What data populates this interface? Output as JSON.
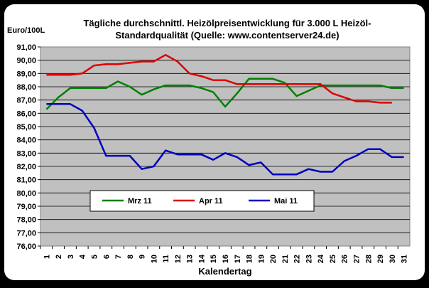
{
  "chart_data": {
    "type": "line",
    "title_line1": "Tägliche durchschnittl. Heizölpreisentwicklung für 3.000 L Heizöl-",
    "title_line2": "Standardqualität (Quelle: www.contentserver24.de)",
    "ylabel": "Euro/100L",
    "xlabel": "Kalendertag",
    "ylim": [
      76,
      91
    ],
    "y_ticks": [
      "76,00",
      "77,00",
      "78,00",
      "79,00",
      "80,00",
      "81,00",
      "82,00",
      "83,00",
      "84,00",
      "85,00",
      "86,00",
      "87,00",
      "88,00",
      "89,00",
      "90,00",
      "91,00"
    ],
    "x": [
      1,
      2,
      3,
      4,
      5,
      6,
      7,
      8,
      9,
      10,
      11,
      12,
      13,
      14,
      15,
      16,
      17,
      18,
      19,
      20,
      21,
      22,
      23,
      24,
      25,
      26,
      27,
      28,
      29,
      30,
      31
    ],
    "grid": true,
    "legend_position": "lower-center",
    "series": [
      {
        "name": "Mrz 11",
        "color": "#008000",
        "values": [
          86.3,
          87.2,
          87.9,
          87.9,
          87.9,
          87.9,
          88.4,
          88.0,
          87.4,
          87.8,
          88.1,
          88.1,
          88.1,
          87.9,
          87.6,
          86.5,
          87.5,
          88.6,
          88.6,
          88.6,
          88.3,
          87.3,
          87.7,
          88.1,
          88.1,
          88.1,
          88.1,
          88.1,
          88.1,
          87.9,
          87.9
        ]
      },
      {
        "name": "Apr 11",
        "color": "#e00000",
        "values": [
          88.9,
          88.9,
          88.9,
          89.0,
          89.6,
          89.7,
          89.7,
          89.8,
          89.9,
          89.9,
          90.4,
          89.9,
          89.0,
          88.8,
          88.5,
          88.5,
          88.2,
          88.2,
          88.2,
          88.2,
          88.2,
          88.2,
          88.2,
          88.2,
          87.5,
          87.2,
          86.9,
          86.9,
          86.8,
          86.8,
          null
        ]
      },
      {
        "name": "Mai 11",
        "color": "#0000c0",
        "values": [
          86.7,
          86.7,
          86.7,
          86.2,
          84.9,
          82.8,
          82.8,
          82.8,
          81.8,
          82.0,
          83.2,
          82.9,
          82.9,
          82.9,
          82.5,
          83.0,
          82.7,
          82.1,
          82.3,
          81.4,
          81.4,
          81.4,
          81.8,
          81.6,
          81.6,
          82.4,
          82.8,
          83.3,
          83.3,
          82.7,
          82.7
        ]
      }
    ]
  }
}
